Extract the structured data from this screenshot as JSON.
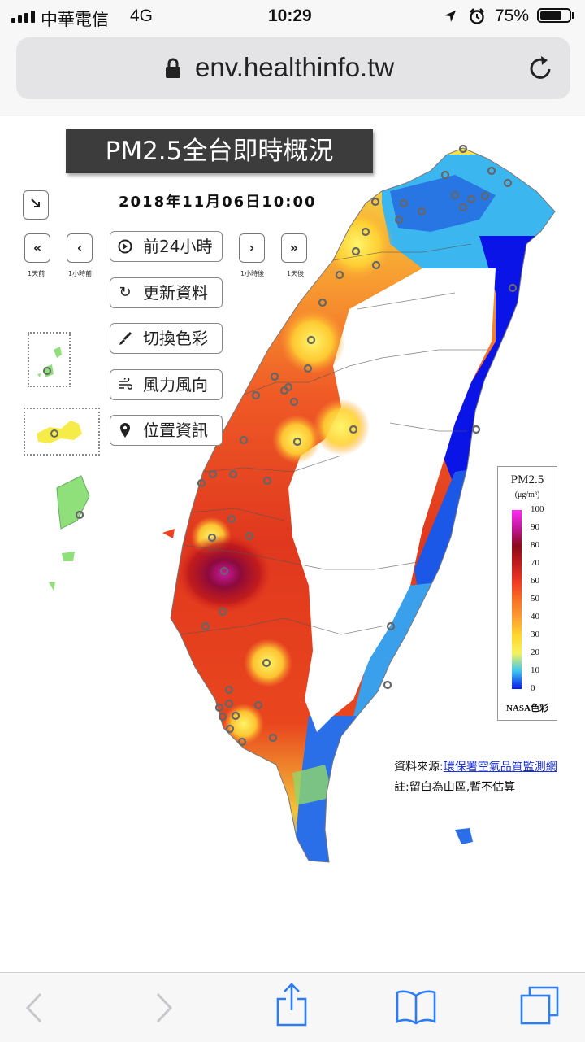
{
  "status_bar": {
    "carrier": "中華電信",
    "network": "4G",
    "time": "10:29",
    "battery": "75%",
    "battery_level": 0.75,
    "icons": [
      "signal-icon",
      "location-arrow-icon",
      "alarm-icon",
      "battery-icon"
    ]
  },
  "browser": {
    "url": "env.healthinfo.tw",
    "icons": [
      "lock-icon",
      "reload-icon"
    ]
  },
  "map": {
    "title": "PM2.5全台即時概況",
    "datetime": "2018年11月06日10:00",
    "nav": {
      "day_back_label": "1天前",
      "hour_back_label": "1小時前",
      "hour_fwd_label": "1小時後",
      "day_fwd_label": "1天後"
    },
    "buttons": {
      "play": "前24小時",
      "refresh": "更新資料",
      "color": "切換色彩",
      "wind": "風力風向",
      "location": "位置資訊"
    },
    "legend": {
      "title": "PM2.5",
      "unit": "(μg/m³)",
      "ticks": [
        "100",
        "90",
        "80",
        "70",
        "60",
        "50",
        "40",
        "30",
        "20",
        "10",
        "0"
      ],
      "palette": "NASA色彩",
      "colors": [
        "#ff2af7",
        "#8c0a1c",
        "#ef3a24",
        "#fb9e32",
        "#f5f25c",
        "#3cc6f2",
        "#0a18e8"
      ]
    },
    "source_prefix": "資料來源:",
    "source_link": "環保署空氣品質監測網",
    "note": "註:留白為山區,暫不估算"
  },
  "toolbar": {
    "icons": [
      "back-icon",
      "forward-icon",
      "share-icon",
      "bookmarks-icon",
      "tabs-icon"
    ]
  }
}
